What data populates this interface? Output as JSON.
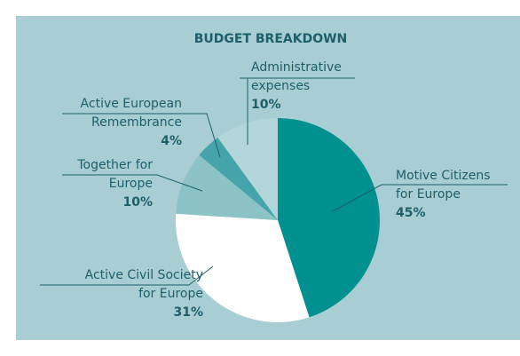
{
  "chart_data": {
    "type": "pie",
    "title": "BUDGET BREAKDOWN",
    "categories": [
      [
        "Motive Citizens",
        "for Europe"
      ],
      [
        "Active Civil Society",
        "for Europe"
      ],
      [
        "Together for",
        "Europe"
      ],
      [
        "Active European",
        "Remembrance"
      ],
      [
        "Administrative",
        "expenses"
      ]
    ],
    "values": [
      45,
      31,
      10,
      4,
      10
    ],
    "value_labels": [
      "45%",
      "31%",
      "10%",
      "4%",
      "10%"
    ],
    "colors": [
      "#00908f",
      "#ffffff",
      "#8cc3c7",
      "#45a4aa",
      "#b3d6da"
    ]
  }
}
